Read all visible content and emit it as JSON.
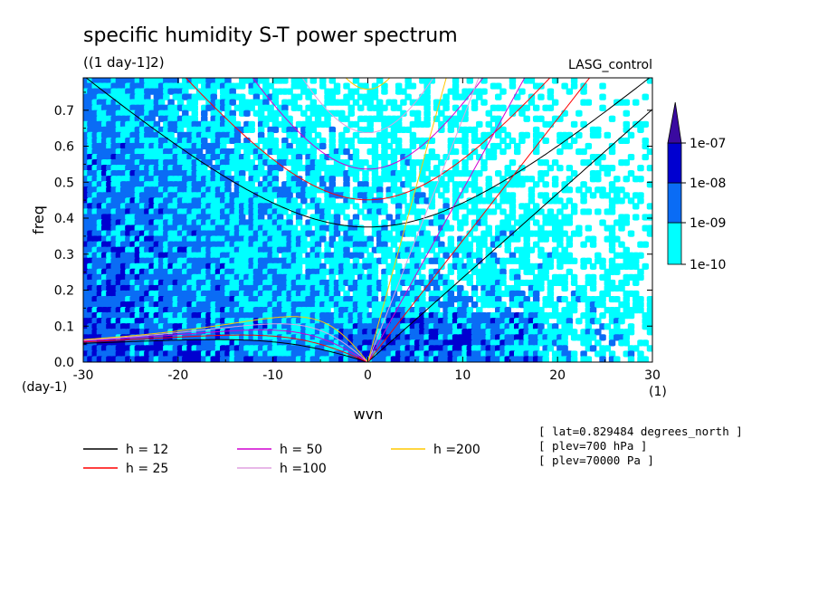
{
  "chart_data": {
    "type": "heatmap",
    "title": "specific humidity S-T power spectrum",
    "subtitle": "((1 day-1]2)",
    "dataset": "LASG_control",
    "xlabel": "wvn",
    "ylabel": "freq",
    "x_unit": "(1)",
    "y_unit": "(day-1)",
    "xlim": [
      -30,
      30
    ],
    "ylim": [
      0,
      0.79
    ],
    "x_ticks": [
      "-30",
      "-20",
      "-10",
      "0",
      "10",
      "20",
      "30"
    ],
    "x_tick_values": [
      -30,
      -20,
      -10,
      0,
      10,
      20,
      30
    ],
    "y_ticks": [
      "0.0",
      "0.1",
      "0.2",
      "0.3",
      "0.4",
      "0.5",
      "0.6",
      "0.7"
    ],
    "y_tick_values": [
      0,
      0.1,
      0.2,
      0.3,
      0.4,
      0.5,
      0.6,
      0.7
    ],
    "colorbar": {
      "labels": [
        "1e-10",
        "1e-09",
        "1e-08",
        "1e-07"
      ],
      "colors": [
        "#ffffff",
        "#00ffff",
        "#0a6cf5",
        "#0000d0",
        "#3a0aa0"
      ]
    },
    "dispersion_curves": [
      {
        "name": "h = 12",
        "h": 12,
        "color": "#000000"
      },
      {
        "name": "h = 25",
        "h": 25,
        "color": "#ff0000"
      },
      {
        "name": "h = 50",
        "h": 50,
        "color": "#d000d0"
      },
      {
        "name": "h =100",
        "h": 100,
        "color": "#e0a0e0"
      },
      {
        "name": "h =200",
        "h": 200,
        "color": "#ffc800"
      }
    ],
    "notes": [
      "[ lat=0.829484 degrees_north ]",
      "[ plev=700 hPa ]",
      "[ plev=70000 Pa ]"
    ]
  }
}
